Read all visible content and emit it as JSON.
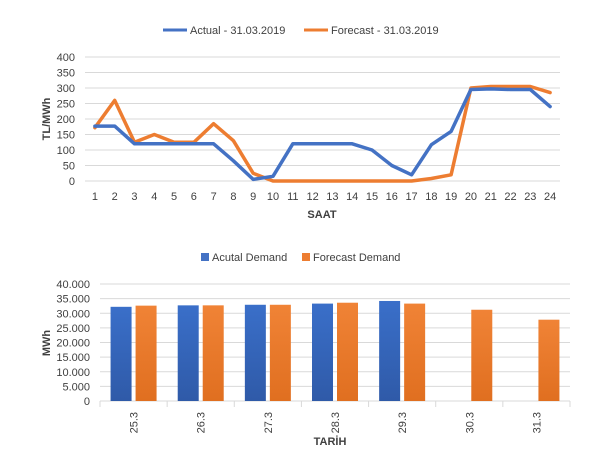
{
  "colors": {
    "blue": "#4472C4",
    "orange": "#ED7D31"
  },
  "chart_data": [
    {
      "type": "line",
      "title": "",
      "xlabel": "SAAT",
      "ylabel": "TL/MWh",
      "x": [
        "1",
        "2",
        "3",
        "4",
        "5",
        "6",
        "7",
        "8",
        "9",
        "10",
        "11",
        "12",
        "13",
        "14",
        "15",
        "16",
        "17",
        "18",
        "19",
        "20",
        "21",
        "22",
        "23",
        "24"
      ],
      "yticks": [
        "0",
        "50",
        "100",
        "150",
        "200",
        "250",
        "300",
        "350",
        "400"
      ],
      "ylim": [
        0,
        400
      ],
      "legend_position": "top",
      "grid": true,
      "series": [
        {
          "name": "Actual - 31.03.2019",
          "color": "#4472C4",
          "values": [
            177,
            177,
            120,
            120,
            120,
            120,
            120,
            65,
            5,
            15,
            120,
            120,
            120,
            120,
            100,
            50,
            20,
            117,
            160,
            295,
            297,
            295,
            295,
            240
          ]
        },
        {
          "name": "Forecast - 31.03.2019",
          "color": "#ED7D31",
          "values": [
            172,
            260,
            125,
            150,
            125,
            125,
            185,
            130,
            25,
            0,
            0,
            0,
            0,
            0,
            0,
            0,
            0,
            8,
            20,
            300,
            305,
            305,
            305,
            285
          ]
        }
      ]
    },
    {
      "type": "bar",
      "title": "",
      "xlabel": "TARİH",
      "ylabel": "MWh",
      "categories": [
        "25.3",
        "26.3",
        "27.3",
        "28.3",
        "29.3",
        "30.3",
        "31.3"
      ],
      "yticks": [
        "0",
        "5.000",
        "10.000",
        "15.000",
        "20.000",
        "25.000",
        "30.000",
        "35.000",
        "40.000"
      ],
      "ylim": [
        0,
        40000
      ],
      "legend_position": "top",
      "grid": true,
      "series": [
        {
          "name": "Acutal Demand",
          "color": "#4472C4",
          "values": [
            32200,
            32700,
            32900,
            33300,
            34200,
            null,
            null
          ]
        },
        {
          "name": "Forecast Demand",
          "color": "#ED7D31",
          "values": [
            32600,
            32700,
            32900,
            33600,
            33300,
            31200,
            27800
          ]
        }
      ]
    }
  ]
}
